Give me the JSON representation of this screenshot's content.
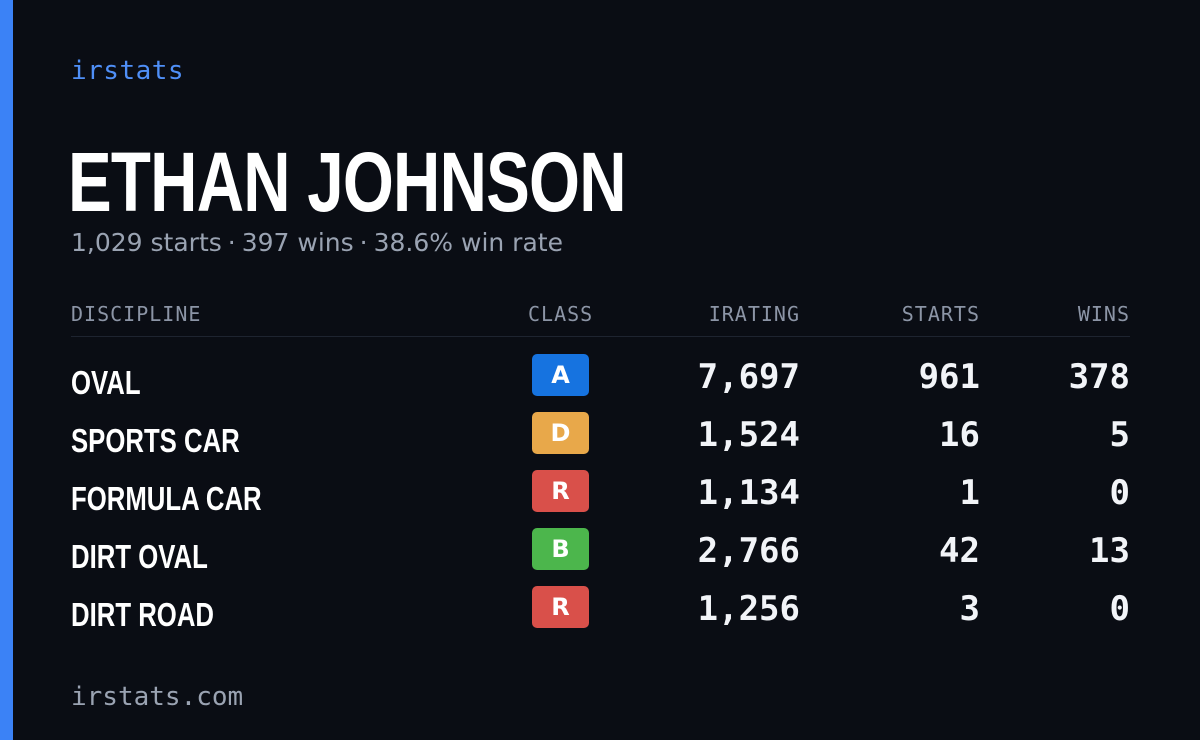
{
  "brand": "irstats",
  "driver": {
    "name": "ETHAN JOHNSON",
    "starts": "1,029 starts",
    "wins": "397 wins",
    "win_rate": "38.6% win rate",
    "separator": "·"
  },
  "table": {
    "headers": {
      "discipline": "DISCIPLINE",
      "class": "CLASS",
      "irating": "IRATING",
      "starts": "STARTS",
      "wins": "WINS"
    },
    "rows": [
      {
        "discipline": "OVAL",
        "class": "A",
        "class_color": "#1673e0",
        "irating": "7,697",
        "starts": "961",
        "wins": "378"
      },
      {
        "discipline": "SPORTS CAR",
        "class": "D",
        "class_color": "#e8a84a",
        "irating": "1,524",
        "starts": "16",
        "wins": "5"
      },
      {
        "discipline": "FORMULA CAR",
        "class": "R",
        "class_color": "#d9504a",
        "irating": "1,134",
        "starts": "1",
        "wins": "0"
      },
      {
        "discipline": "DIRT OVAL",
        "class": "B",
        "class_color": "#4cb64c",
        "irating": "2,766",
        "starts": "42",
        "wins": "13"
      },
      {
        "discipline": "DIRT ROAD",
        "class": "R",
        "class_color": "#d9504a",
        "irating": "1,256",
        "starts": "3",
        "wins": "0"
      }
    ]
  },
  "footer": "irstats.com",
  "colors": {
    "accent": "#3b82f6",
    "background": "#0a0d14"
  }
}
